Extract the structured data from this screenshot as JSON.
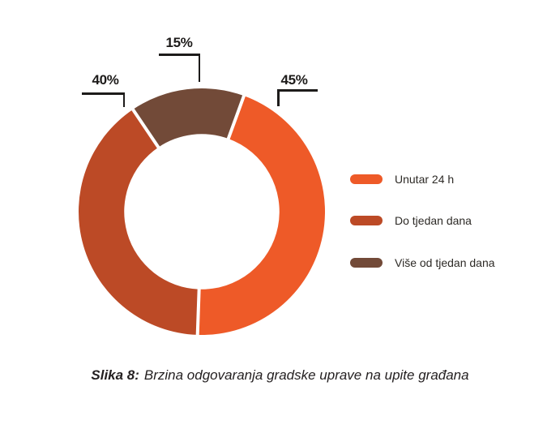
{
  "chart_data": {
    "type": "pie",
    "subtype": "donut",
    "title": "",
    "unit": "%",
    "slices": [
      {
        "label": "Unutar 24 h",
        "value": 45,
        "color": "#EE5A28",
        "callout": "45%"
      },
      {
        "label": "Do tjedan dana",
        "value": 40,
        "color": "#BC4A26",
        "callout": "40%"
      },
      {
        "label": "Više od tjedan dana",
        "value": 15,
        "color": "#724A38",
        "callout": "15%"
      }
    ],
    "start_angle_deg": 20,
    "donut_hole_ratio": 0.63,
    "legend_position": "right",
    "separator_color": "#FFFFFF"
  },
  "caption": {
    "prefix": "Slika 8:",
    "text": "Brzina odgovaranja gradske uprave na upite građana"
  }
}
